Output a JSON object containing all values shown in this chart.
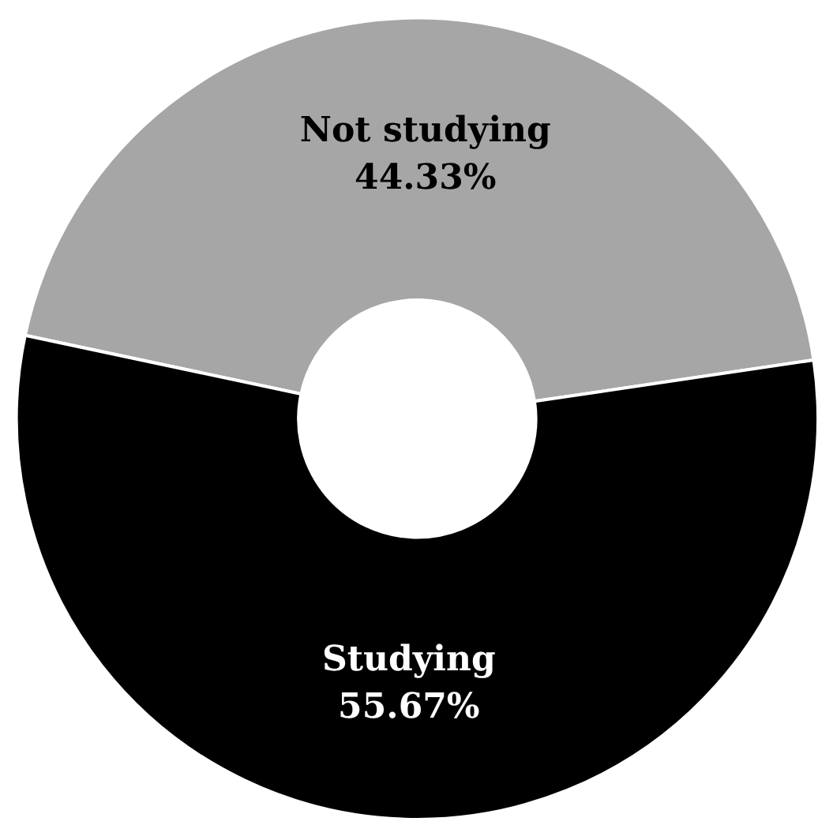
{
  "chart_data": {
    "type": "donut",
    "categories": [
      "Not studying",
      "Studying"
    ],
    "values": [
      44.33,
      55.67
    ],
    "colors": [
      "#a6a6a6",
      "#000000"
    ],
    "value_labels": [
      "44.33%",
      "55.67%"
    ],
    "legend": false
  }
}
